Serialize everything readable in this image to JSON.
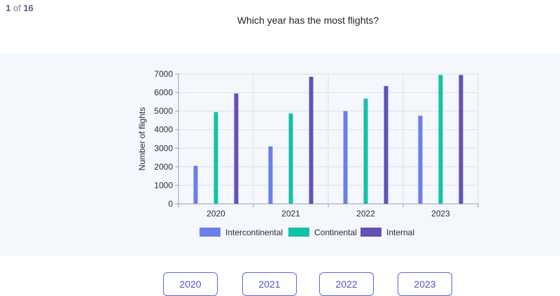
{
  "header": {
    "current": "1",
    "of_label": "of",
    "total": "16"
  },
  "question": "Which year has the most flights?",
  "answers": [
    "2020",
    "2021",
    "2022",
    "2023"
  ],
  "colors": {
    "intercontinental": "#6b7fe6",
    "continental": "#13c2a6",
    "internal": "#6551b6",
    "answer_border": "#5a66d6"
  },
  "chart_data": {
    "type": "bar",
    "categories": [
      "2020",
      "2021",
      "2022",
      "2023"
    ],
    "series": [
      {
        "name": "Intercontinental",
        "values": [
          2050,
          3100,
          5000,
          4750
        ]
      },
      {
        "name": "Continental",
        "values": [
          4950,
          4870,
          5670,
          6950
        ]
      },
      {
        "name": "Internal",
        "values": [
          5950,
          6850,
          6350,
          6950
        ]
      }
    ],
    "ylabel": "Number of flights",
    "xlabel": "",
    "ylim": [
      0,
      7000
    ],
    "yticks": [
      0,
      1000,
      2000,
      3000,
      4000,
      5000,
      6000,
      7000
    ],
    "grid": true,
    "legend": "bottom"
  }
}
